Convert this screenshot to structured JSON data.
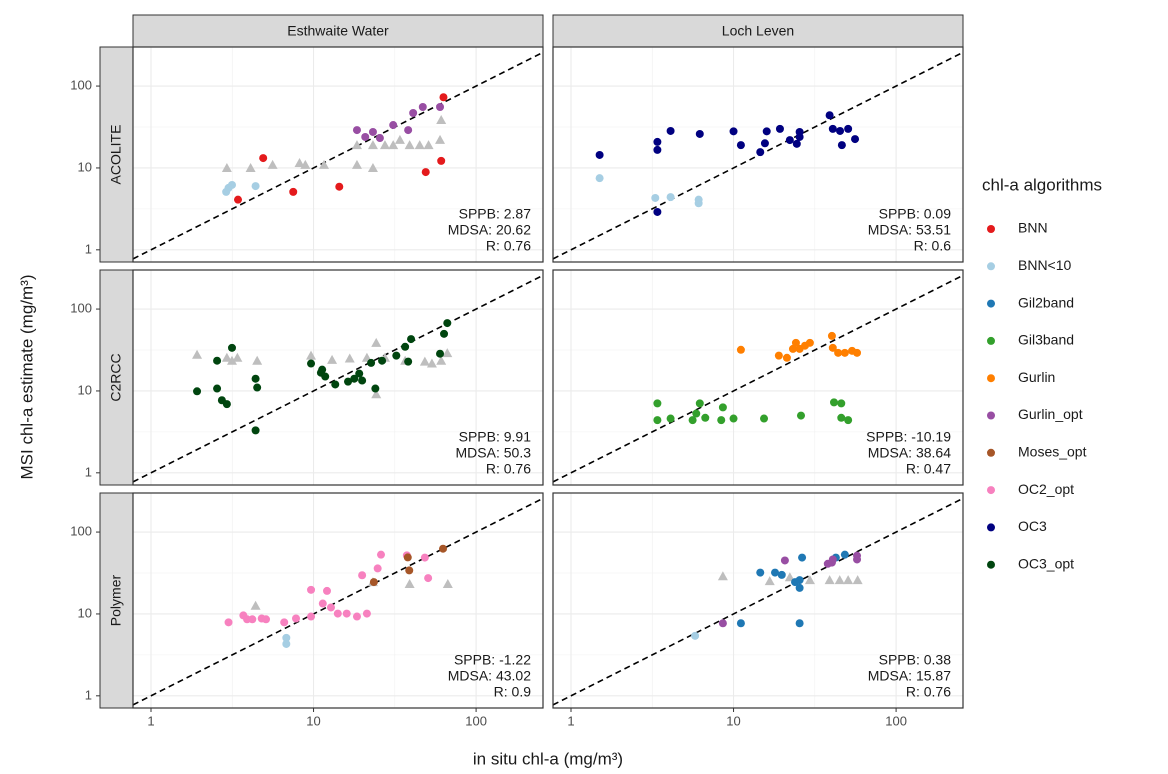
{
  "chart_data": {
    "type": "scatter",
    "xlabel": "in situ chl-a (mg/m³)",
    "ylabel": "MSI chl-a estimate (mg/m³)",
    "log_x": true,
    "log_y": true,
    "grid": true,
    "xlim": [
      0.775,
      258
    ],
    "ylim": [
      0.71,
      300
    ],
    "xticks": [
      1,
      10,
      100
    ],
    "yticks": [
      1,
      10,
      100
    ],
    "columns": [
      "Esthwaite Water",
      "Loch Leven"
    ],
    "rows": [
      "ACOLITE",
      "C2RCC",
      "Polymer"
    ],
    "legend_title": "chl-a algorithms",
    "legend_position": "right",
    "series": [
      {
        "name": "BNN",
        "color": "#e41a1c"
      },
      {
        "name": "BNN<10",
        "color": "#a6cee3"
      },
      {
        "name": "Gil2band",
        "color": "#1f78b4"
      },
      {
        "name": "Gil3band",
        "color": "#33a02c"
      },
      {
        "name": "Gurlin",
        "color": "#ff7f00"
      },
      {
        "name": "Gurlin_opt",
        "color": "#984ea3"
      },
      {
        "name": "Moses_opt",
        "color": "#a65628"
      },
      {
        "name": "OC2_opt",
        "color": "#f781bf"
      },
      {
        "name": "OC3",
        "color": "#000080"
      },
      {
        "name": "OC3_opt",
        "color": "#00450f"
      }
    ],
    "panels": [
      {
        "column": 0,
        "row": 0,
        "reference": {
          "color": "#bebebe",
          "x": [
            2.93,
            4.1,
            5.6,
            8.2,
            8.9,
            11.6,
            18.5,
            18.5,
            23.2,
            23.2,
            27.5,
            30.9,
            34,
            39,
            45,
            51,
            60,
            61
          ],
          "values": [
            10,
            10,
            10.9,
            11.5,
            10.9,
            10.9,
            10.9,
            19,
            10,
            19,
            19,
            19,
            22,
            19,
            19,
            19,
            22,
            38.5
          ]
        },
        "groups": [
          {
            "series": 0,
            "x": [
              3.43,
              4.9,
              7.5,
              14.4,
              49,
              61,
              63
            ],
            "values": [
              4.1,
              13.2,
              5.1,
              5.9,
              8.9,
              12.2,
              73
            ]
          },
          {
            "series": 1,
            "x": [
              2.9,
              3.0,
              3.15,
              4.4
            ],
            "values": [
              5.1,
              5.7,
              6.2,
              6.0
            ]
          },
          {
            "series": 5,
            "x": [
              18.5,
              20.8,
              23.2,
              25.6,
              30.9,
              38.2,
              41,
              47,
              60
            ],
            "values": [
              29,
              23.9,
              27.5,
              23.2,
              33.4,
              29,
              46.9,
              55.5,
              55.5
            ]
          }
        ],
        "stats": [
          "SPPB: 2.87",
          "MDSA: 20.62",
          "R: 0.76"
        ]
      },
      {
        "column": 1,
        "row": 0,
        "reference": {
          "color": "#bebebe",
          "x": [],
          "values": []
        },
        "groups": [
          {
            "series": 1,
            "x": [
              1.5,
              3.3,
              4.1,
              6.1,
              6.1
            ],
            "values": [
              7.5,
              4.3,
              4.4,
              4.1,
              3.7
            ]
          },
          {
            "series": 8,
            "x": [
              1.5,
              3.4,
              3.4,
              3.4,
              4.1,
              6.2,
              10,
              11.1,
              14.6,
              15.6,
              16,
              19.3,
              22.2,
              24.5,
              25.5,
              25.5,
              39,
              40.8,
              45.2,
              46.4,
              50.7,
              55.9
            ],
            "values": [
              14.4,
              2.9,
              16.6,
              20.8,
              28.3,
              26,
              28,
              19,
              15.6,
              20,
              28,
              30,
              21.9,
              19.7,
              23.9,
              27.5,
              44,
              30,
              28.3,
              19,
              30,
              22.5
            ]
          }
        ],
        "stats": [
          "SPPB: 0.09",
          "MDSA: 53.51",
          "R: 0.6"
        ]
      },
      {
        "column": 0,
        "row": 1,
        "reference": {
          "color": "#bebebe",
          "x": [
            1.92,
            2.93,
            3.15,
            3.4,
            4.5,
            9.65,
            13,
            16.7,
            21.3,
            27.5,
            24.3,
            24.3,
            36.6,
            48.4,
            53.5,
            61,
            66.5
          ],
          "values": [
            27.7,
            25.4,
            23.4,
            25.4,
            23.4,
            27,
            24,
            24.9,
            25.4,
            25.4,
            38.7,
            9.1,
            23.4,
            22.8,
            21.6,
            23.4,
            29
          ]
        },
        "groups": [
          {
            "series": 9,
            "x": [
              1.92,
              2.55,
              2.55,
              2.73,
              2.93,
              3.15,
              4.4,
              4.4,
              4.5,
              9.65,
              11.1,
              11.3,
              11.8,
              13.6,
              16.3,
              17.8,
              19.1,
              19.9,
              22.6,
              24,
              26.4,
              32.3,
              36.6,
              38.2,
              39.8,
              60,
              63.5,
              66.5
            ],
            "values": [
              9.9,
              23.4,
              10.7,
              7.7,
              6.9,
              33.6,
              3.3,
              14.1,
              11,
              21.6,
              16.7,
              18.2,
              15,
              12,
              13,
              14.1,
              16.3,
              13.4,
              22,
              10.7,
              23.4,
              27,
              34.6,
              22.8,
              43,
              28.5,
              49.8,
              67.4
            ]
          }
        ],
        "stats": [
          "SPPB: 9.91",
          "MDSA: 50.3",
          "R: 0.76"
        ]
      },
      {
        "column": 1,
        "row": 1,
        "reference": {
          "color": "#bebebe",
          "x": [],
          "values": []
        },
        "groups": [
          {
            "series": 3,
            "x": [
              3.4,
              3.4,
              4.1,
              5.6,
              5.9,
              6.2,
              6.7,
              8.4,
              8.6,
              10,
              15.4,
              26,
              41.5,
              46,
              46,
              50.7
            ],
            "values": [
              7.05,
              4.4,
              4.6,
              4.4,
              5.3,
              7.05,
              4.7,
              4.4,
              6.3,
              4.6,
              4.6,
              5.0,
              7.25,
              7.05,
              4.7,
              4.4
            ]
          },
          {
            "series": 4,
            "x": [
              11.1,
              19,
              21.3,
              23.2,
              24.2,
              25.5,
              27.5,
              29.5,
              40.3,
              40.8,
              44,
              48.4,
              53.6,
              57.5
            ],
            "values": [
              31.8,
              27,
              25.4,
              32.6,
              38.7,
              32.6,
              35.7,
              38.7,
              47,
              33.6,
              29.2,
              29.2,
              30.9,
              29.2
            ]
          }
        ],
        "stats": [
          "SPPB: -10.19",
          "MDSA: 38.64",
          "R: 0.47"
        ]
      },
      {
        "column": 0,
        "row": 2,
        "reference": {
          "color": "#bebebe",
          "x": [
            4.4,
            23.2,
            39,
            67
          ],
          "values": [
            12.6,
            24.5,
            23.2,
            23.2
          ]
        },
        "groups": [
          {
            "series": 1,
            "x": [
              6.8,
              6.8
            ],
            "values": [
              5.1,
              4.3
            ]
          },
          {
            "series": 7,
            "x": [
              3.0,
              3.7,
              3.9,
              4.2,
              4.8,
              5.1,
              6.6,
              7.8,
              9.65,
              9.65,
              11.4,
              12.1,
              12.8,
              14.1,
              16,
              18.5,
              21.3,
              19.9,
              24.8,
              26,
              37.5,
              48.4,
              50.7
            ],
            "values": [
              7.9,
              9.6,
              8.6,
              8.6,
              8.8,
              8.6,
              7.9,
              8.8,
              19.7,
              9.3,
              13.4,
              19.1,
              12,
              10.1,
              10.1,
              9.3,
              10.1,
              29.7,
              36,
              53,
              52,
              48.8,
              27.4
            ]
          },
          {
            "series": 6,
            "x": [
              23.5,
              38,
              38.8,
              62.6
            ],
            "values": [
              24.5,
              49,
              34,
              62.6
            ]
          }
        ],
        "stats": [
          "SPPB: -1.22",
          "MDSA: 43.02",
          "R: 0.9"
        ]
      },
      {
        "column": 1,
        "row": 2,
        "reference": {
          "color": "#bebebe",
          "x": [
            8.6,
            16.7,
            22.2,
            29.5,
            39,
            45,
            50.7,
            58
          ],
          "values": [
            28.9,
            25.2,
            28.1,
            25.9,
            25.9,
            25.9,
            25.9,
            25.9
          ]
        },
        "groups": [
          {
            "series": 1,
            "x": [
              5.8
            ],
            "values": [
              5.4
            ]
          },
          {
            "series": 2,
            "x": [
              11.1,
              14.6,
              18,
              19.8,
              23.9,
              25.5,
              25.5,
              26.4,
              25.5,
              42.6,
              48.4
            ],
            "values": [
              7.7,
              32,
              32,
              30,
              24.5,
              20.8,
              25.9,
              48.8,
              7.7,
              48.8,
              53
            ]
          },
          {
            "series": 5,
            "x": [
              8.6,
              20.7,
              40.3,
              40.8,
              57.5,
              57.5,
              38
            ],
            "values": [
              7.7,
              45,
              42.4,
              46.3,
              51.5,
              46.3,
              41
            ]
          }
        ],
        "stats": [
          "SPPB: 0.38",
          "MDSA: 15.87",
          "R: 0.76"
        ]
      }
    ]
  }
}
